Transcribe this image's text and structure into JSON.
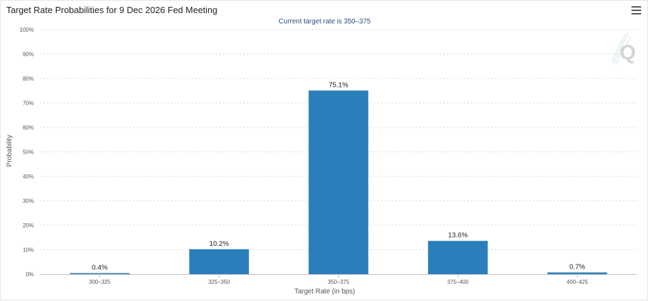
{
  "chart_data": {
    "type": "bar",
    "title": "Target Rate Probabilities for 9 Dec 2026 Fed Meeting",
    "subtitle": "Current target rate is 350–375",
    "xlabel": "Target Rate (in bps)",
    "ylabel": "Probability",
    "categories": [
      "300–325",
      "325–350",
      "350–375",
      "375–400",
      "400–425"
    ],
    "values": [
      0.4,
      10.2,
      75.1,
      13.6,
      0.7
    ],
    "data_labels": [
      "0.4%",
      "10.2%",
      "75.1%",
      "13.6%",
      "0.7%"
    ],
    "ylim": [
      0,
      100
    ],
    "yticks": [
      "0%",
      "10%",
      "20%",
      "30%",
      "40%",
      "50%",
      "60%",
      "70%",
      "80%",
      "90%",
      "100%"
    ],
    "grid": true,
    "bar_color": "#2a7fba",
    "legend": "none"
  },
  "ui": {
    "menu_icon": "hamburger-menu-icon",
    "watermark_icon": "q-logo-icon"
  }
}
